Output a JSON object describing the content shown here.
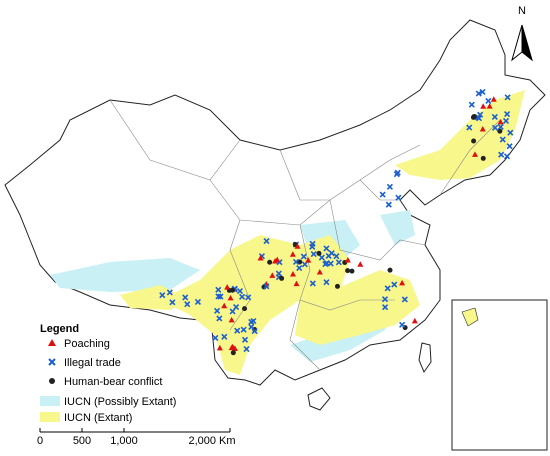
{
  "north_arrow": "N",
  "legend": {
    "title": "Legend",
    "items": [
      "Poaching",
      "Illegal trade",
      "Human-bear conflict",
      "IUCN (Possibly Extant)",
      "IUCN (Extant)"
    ]
  },
  "scale_bar": {
    "labels": [
      "0",
      "500",
      "1,000",
      "2,000 Km"
    ]
  }
}
